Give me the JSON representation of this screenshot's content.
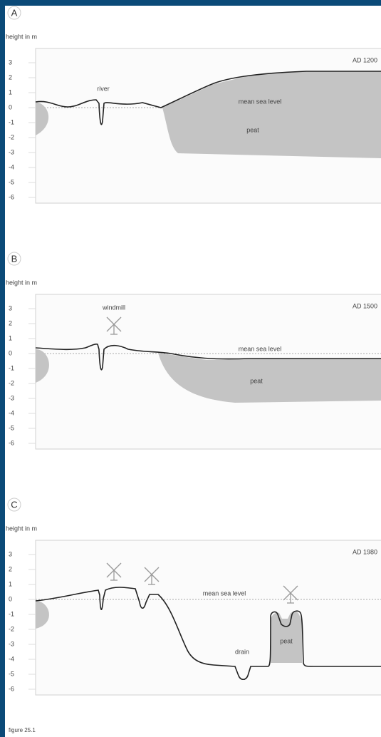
{
  "figure_caption": "figure 25.1",
  "panels": [
    {
      "label": "A",
      "axis_title": "height in m",
      "yticks": [
        "3",
        "2",
        "1",
        "0",
        "-1",
        "-2",
        "-3",
        "-4",
        "-5",
        "-6"
      ],
      "period": "AD 1200",
      "annotations": [
        "river",
        "mean sea level",
        "peat"
      ]
    },
    {
      "label": "B",
      "axis_title": "height in m",
      "yticks": [
        "3",
        "2",
        "1",
        "0",
        "-1",
        "-2",
        "-3",
        "-4",
        "-5",
        "-6"
      ],
      "period": "AD 1500",
      "annotations": [
        "windmill",
        "mean sea level",
        "peat"
      ]
    },
    {
      "label": "C",
      "axis_title": "height in m",
      "yticks": [
        "3",
        "2",
        "1",
        "0",
        "-1",
        "-2",
        "-3",
        "-4",
        "-5",
        "-6"
      ],
      "period": "AD 1980",
      "annotations": [
        "mean sea level",
        "drain",
        "peat"
      ]
    }
  ]
}
